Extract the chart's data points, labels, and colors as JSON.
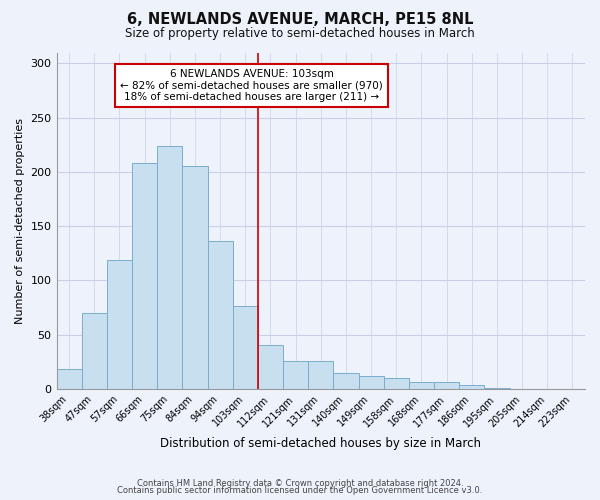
{
  "title": "6, NEWLANDS AVENUE, MARCH, PE15 8NL",
  "subtitle": "Size of property relative to semi-detached houses in March",
  "xlabel": "Distribution of semi-detached houses by size in March",
  "ylabel": "Number of semi-detached properties",
  "categories": [
    "38sqm",
    "47sqm",
    "57sqm",
    "66sqm",
    "75sqm",
    "84sqm",
    "94sqm",
    "103sqm",
    "112sqm",
    "121sqm",
    "131sqm",
    "140sqm",
    "149sqm",
    "158sqm",
    "168sqm",
    "177sqm",
    "186sqm",
    "195sqm",
    "205sqm",
    "214sqm",
    "223sqm"
  ],
  "values": [
    18,
    70,
    119,
    208,
    224,
    205,
    136,
    76,
    40,
    26,
    26,
    15,
    12,
    10,
    6,
    6,
    4,
    1,
    0,
    0,
    0
  ],
  "bar_color": "#c8dff0",
  "bar_edge_color": "#7aadd0",
  "highlight_index": 7,
  "highlight_line_color": "#cc0000",
  "ylim": [
    0,
    310
  ],
  "yticks": [
    0,
    50,
    100,
    150,
    200,
    250,
    300
  ],
  "annotation_title": "6 NEWLANDS AVENUE: 103sqm",
  "annotation_line1": "← 82% of semi-detached houses are smaller (970)",
  "annotation_line2": "18% of semi-detached houses are larger (211) →",
  "footer1": "Contains HM Land Registry data © Crown copyright and database right 2024.",
  "footer2": "Contains public sector information licensed under the Open Government Licence v3.0.",
  "background_color": "#eef2fb",
  "grid_color": "#c8d0e8"
}
